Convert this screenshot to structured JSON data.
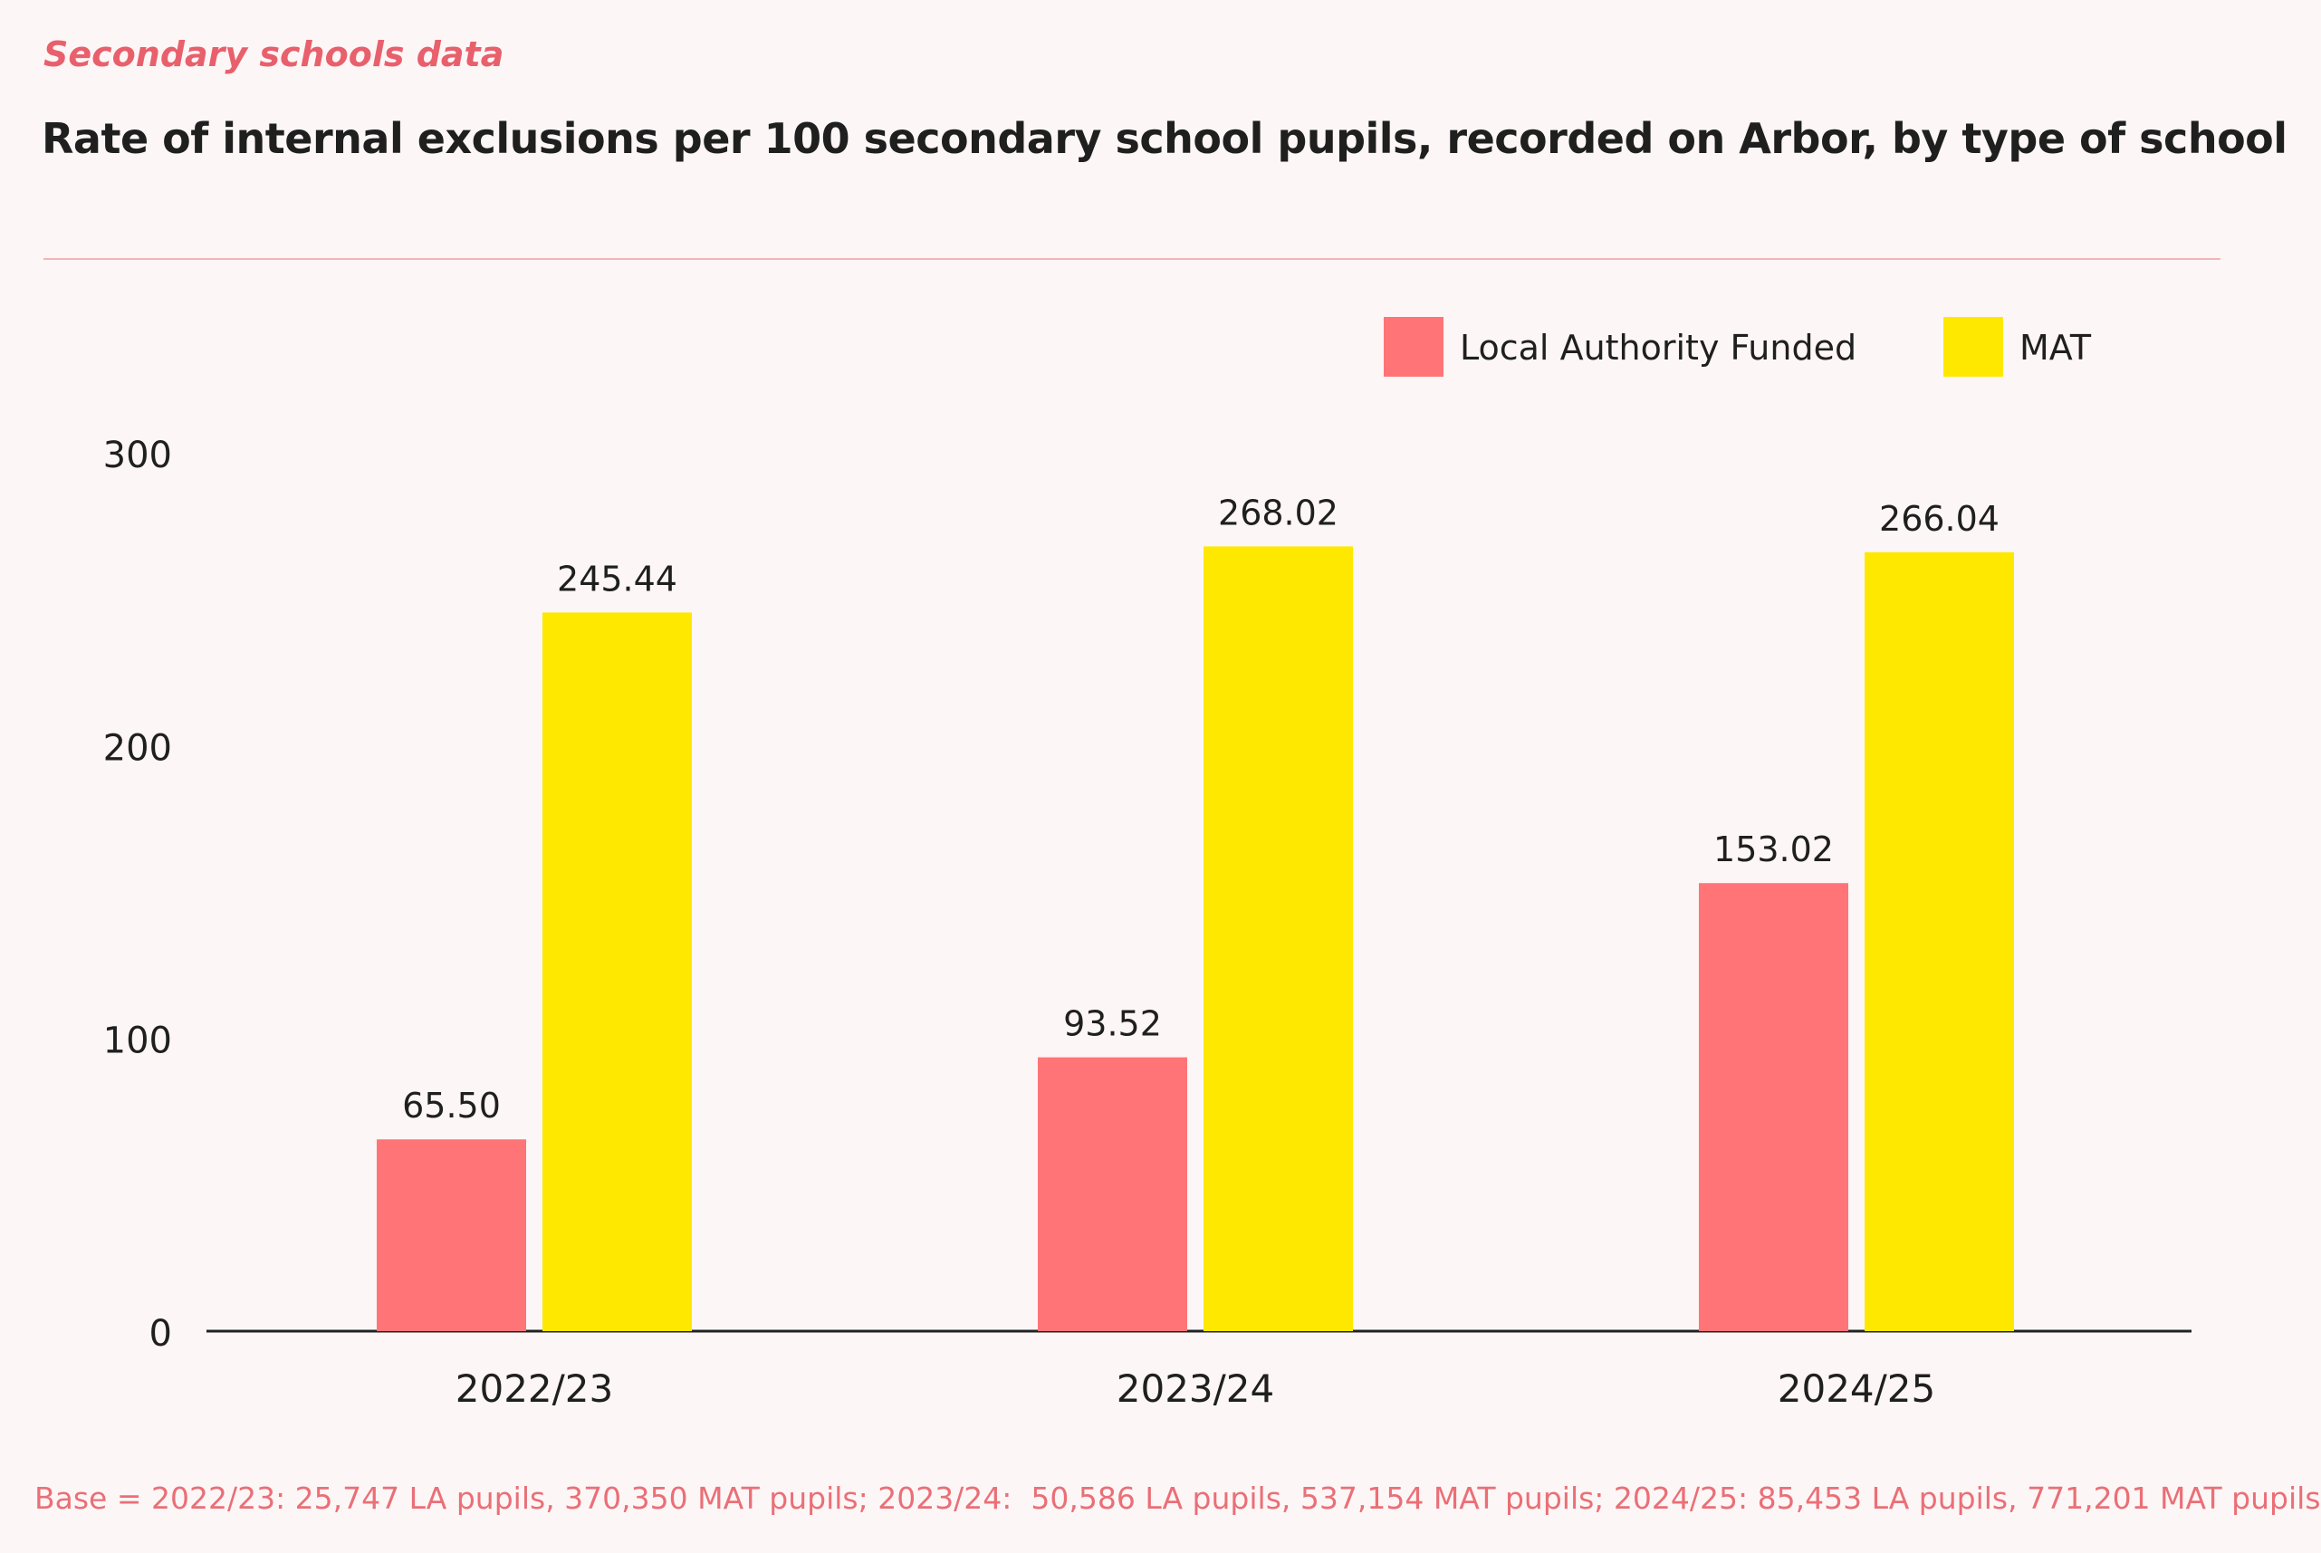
{
  "header": {
    "kicker": "Secondary schools data",
    "title": "Rate of internal exclusions per 100 secondary school pupils, recorded on Arbor, by type of school"
  },
  "footer": {
    "base_note": "Base = 2022/23: 25,747 LA pupils, 370,350 MAT pupils; 2023/24:  50,586 LA pupils, 537,154 MAT pupils; 2024/25: 85,453 LA pupils, 771,201 MAT pupils"
  },
  "colors": {
    "la": "#ff7477",
    "mat": "#ffe800",
    "axis": "#222222",
    "text": "#1f1f1f"
  },
  "chart_data": {
    "type": "bar",
    "title": "Rate of internal exclusions per 100 secondary school pupils, recorded on Arbor, by type of school",
    "xlabel": "",
    "ylabel": "",
    "ylim": [
      0,
      300
    ],
    "yticks": [
      0,
      100,
      200,
      300
    ],
    "grid": false,
    "legend_position": "top-right",
    "categories": [
      "2022/23",
      "2023/24",
      "2024/25"
    ],
    "series": [
      {
        "name": "Local Authority Funded",
        "color": "#ff7477",
        "values": [
          65.5,
          93.52,
          153.02
        ],
        "labels": [
          "65.50",
          "93.52",
          "153.02"
        ]
      },
      {
        "name": "MAT",
        "color": "#ffe800",
        "values": [
          245.44,
          268.02,
          266.04
        ],
        "labels": [
          "245.44",
          "268.02",
          "266.04"
        ]
      }
    ]
  }
}
